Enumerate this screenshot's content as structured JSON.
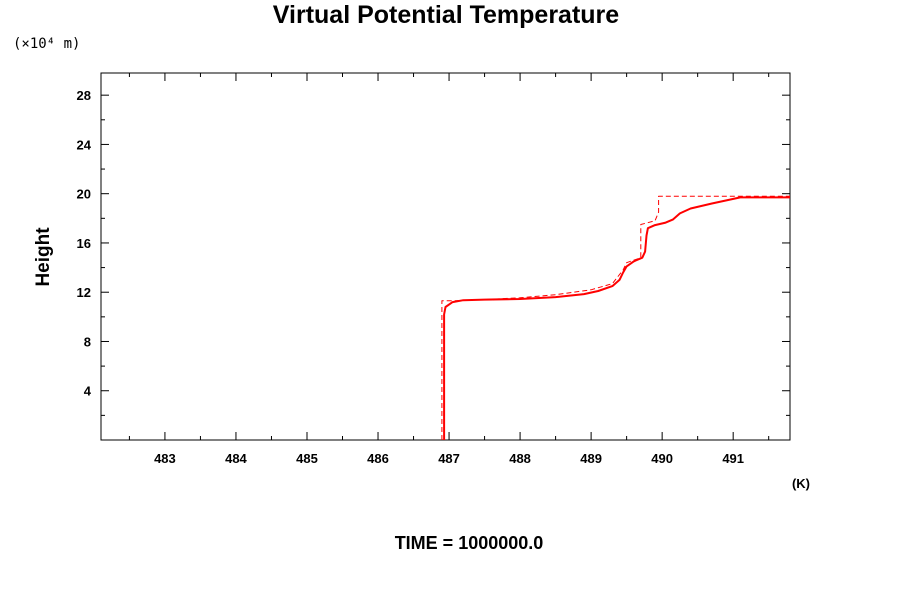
{
  "chart_data": {
    "type": "line",
    "title": "Virtual Potential Temperature",
    "ylabel": "Height",
    "y_unit": "(×10⁴ m)",
    "x_unit": "(K)",
    "xlim": [
      482.1,
      491.8
    ],
    "ylim": [
      0,
      29.8
    ],
    "x_ticks": [
      483,
      484,
      485,
      486,
      487,
      488,
      489,
      490,
      491
    ],
    "y_ticks": [
      4,
      8,
      12,
      16,
      20,
      24,
      28
    ],
    "footer": "TIME = 1000000.0",
    "grid": false,
    "series": [
      {
        "style": "solid",
        "color": "#ff0000",
        "x": [
          486.93,
          486.93,
          486.95,
          487.05,
          487.2,
          487.5,
          488.0,
          488.5,
          488.9,
          489.1,
          489.3,
          489.4,
          489.45,
          489.5,
          489.6,
          489.72,
          489.76,
          489.78,
          489.8,
          489.9,
          490.05,
          490.15,
          490.25,
          490.4,
          490.7,
          491.1,
          491.5,
          491.8
        ],
        "y": [
          0,
          10.2,
          10.8,
          11.2,
          11.35,
          11.4,
          11.45,
          11.6,
          11.85,
          12.1,
          12.5,
          13.0,
          13.6,
          14.1,
          14.5,
          14.8,
          15.3,
          16.6,
          17.2,
          17.45,
          17.65,
          17.9,
          18.4,
          18.8,
          19.2,
          19.7,
          19.7,
          19.7
        ]
      },
      {
        "style": "dashed",
        "color": "#ff0000",
        "x": [
          486.9,
          486.9,
          486.9,
          487.05,
          487.5,
          488.0,
          488.5,
          489.0,
          489.3,
          489.45,
          489.5,
          489.7,
          489.7,
          489.9,
          489.95,
          489.95,
          490.5,
          491.0,
          491.8
        ],
        "y": [
          0,
          9.0,
          11.3,
          11.3,
          11.4,
          11.55,
          11.8,
          12.2,
          12.7,
          13.8,
          14.4,
          14.8,
          17.5,
          17.8,
          18.5,
          19.8,
          19.8,
          19.8,
          19.8
        ]
      }
    ]
  }
}
